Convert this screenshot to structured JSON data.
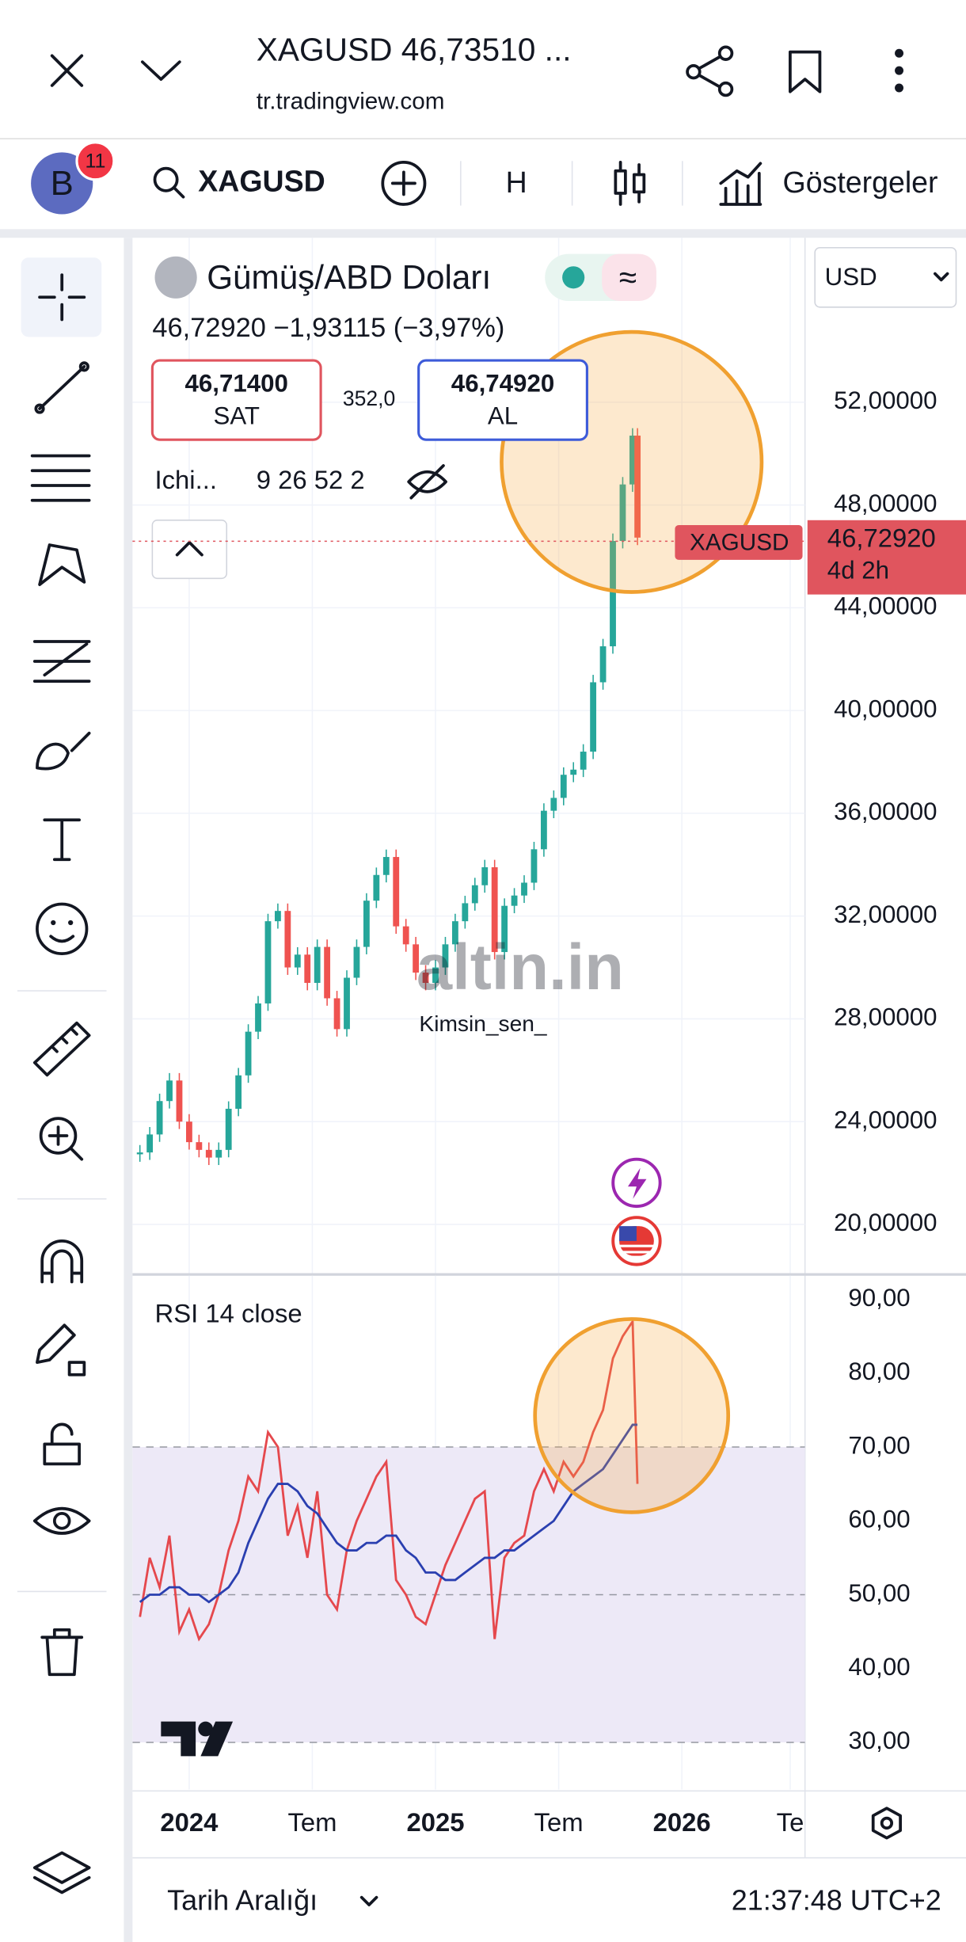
{
  "header": {
    "title": "XAGUSD 46,73510 ...",
    "url": "tr.tradingview.com"
  },
  "toolbar": {
    "avatar": "B",
    "badge": "11",
    "symbol": "XAGUSD",
    "interval": "H",
    "indicators": "Göstergeler"
  },
  "legend": {
    "name": "Gümüş/ABD Doları",
    "change": "46,72920  −1,93115 (−3,97%)",
    "sell_price": "46,71400",
    "sell": "SAT",
    "spread": "352,0",
    "buy_price": "46,74920",
    "buy": "AL",
    "indicator": "Ichi...",
    "indicator_params": "9 26 52 2"
  },
  "currency": "USD",
  "last_price": {
    "symbol": "XAGUSD",
    "value": "46,72920",
    "countdown": "4d 2h"
  },
  "watermark": {
    "brand": "altin.in",
    "user": "Kimsin_sen_"
  },
  "chart_data": [
    {
      "type": "candlestick",
      "up_color": "#26a69a",
      "down_color": "#ef5350",
      "x": [
        2023.8,
        2023.84,
        2023.88,
        2023.92,
        2023.96,
        2024.0,
        2024.04,
        2024.08,
        2024.12,
        2024.16,
        2024.2,
        2024.24,
        2024.28,
        2024.32,
        2024.36,
        2024.4,
        2024.44,
        2024.48,
        2024.52,
        2024.56,
        2024.6,
        2024.64,
        2024.68,
        2024.72,
        2024.76,
        2024.8,
        2024.84,
        2024.88,
        2024.92,
        2024.96,
        2025.0,
        2025.04,
        2025.08,
        2025.12,
        2025.16,
        2025.2,
        2025.24,
        2025.28,
        2025.32,
        2025.36,
        2025.4,
        2025.44,
        2025.48,
        2025.52,
        2025.56,
        2025.6,
        2025.64,
        2025.68,
        2025.72,
        2025.76,
        2025.8,
        2025.82
      ],
      "values": [
        22.8,
        23.5,
        24.8,
        25.6,
        24.0,
        23.2,
        22.9,
        22.6,
        22.9,
        24.5,
        25.8,
        27.5,
        28.6,
        31.8,
        32.2,
        30.0,
        30.5,
        29.4,
        30.8,
        28.8,
        27.6,
        29.6,
        30.8,
        32.6,
        33.6,
        34.3,
        31.6,
        30.9,
        29.8,
        29.4,
        30.0,
        30.9,
        31.8,
        32.5,
        33.2,
        33.9,
        30.6,
        32.4,
        32.8,
        33.3,
        34.6,
        36.1,
        36.6,
        37.5,
        37.7,
        38.4,
        41.1,
        42.5,
        46.6,
        48.8,
        50.7,
        46.73
      ],
      "xlim": [
        2023.77,
        2026.5
      ],
      "xticks": [
        {
          "value": 2024,
          "label": "2024"
        },
        {
          "value": 2024.5,
          "label": "Tem"
        },
        {
          "value": 2025,
          "label": "2025"
        },
        {
          "value": 2025.5,
          "label": "Tem"
        },
        {
          "value": 2026,
          "label": "2026"
        },
        {
          "value": 2026.44,
          "label": "Te"
        }
      ],
      "ylim": [
        18.1,
        58.4
      ],
      "yticks": [
        {
          "value": 20,
          "label": "20,00000"
        },
        {
          "value": 24,
          "label": "24,00000"
        },
        {
          "value": 28,
          "label": "28,00000"
        },
        {
          "value": 32,
          "label": "32,00000"
        },
        {
          "value": 36,
          "label": "36,00000"
        },
        {
          "value": 40,
          "label": "40,00000"
        },
        {
          "value": 44,
          "label": "44,00000"
        },
        {
          "value": 48,
          "label": "48,00000"
        },
        {
          "value": 52,
          "label": "52,00000"
        }
      ],
      "grid": true
    },
    {
      "type": "line",
      "title": "RSI 14 close",
      "x": [
        2023.8,
        2023.84,
        2023.88,
        2023.92,
        2023.96,
        2024.0,
        2024.04,
        2024.08,
        2024.12,
        2024.16,
        2024.2,
        2024.24,
        2024.28,
        2024.32,
        2024.36,
        2024.4,
        2024.44,
        2024.48,
        2024.52,
        2024.56,
        2024.6,
        2024.64,
        2024.68,
        2024.72,
        2024.76,
        2024.8,
        2024.84,
        2024.88,
        2024.92,
        2024.96,
        2025.0,
        2025.04,
        2025.08,
        2025.12,
        2025.16,
        2025.2,
        2025.24,
        2025.28,
        2025.32,
        2025.36,
        2025.4,
        2025.44,
        2025.48,
        2025.52,
        2025.56,
        2025.6,
        2025.64,
        2025.68,
        2025.72,
        2025.76,
        2025.8,
        2025.82
      ],
      "series": [
        {
          "color": "#e5484d",
          "values": [
            47,
            55,
            51,
            58,
            45,
            48,
            44,
            46,
            50,
            56,
            60,
            66,
            64,
            72,
            70,
            58,
            62,
            55,
            64,
            50,
            48,
            56,
            60,
            63,
            66,
            68,
            52,
            50,
            47,
            46,
            50,
            54,
            57,
            60,
            63,
            64,
            44,
            55,
            57,
            58,
            64,
            67,
            64,
            68,
            66,
            68,
            72,
            75,
            82,
            85,
            87,
            65
          ]
        },
        {
          "color": "#2a3fb0",
          "values": [
            49,
            50,
            50,
            51,
            51,
            50,
            50,
            49,
            50,
            51,
            53,
            57,
            60,
            63,
            65,
            65,
            64,
            62,
            61,
            59,
            57,
            56,
            56,
            57,
            57,
            58,
            58,
            56,
            55,
            53,
            53,
            52,
            52,
            53,
            54,
            55,
            55,
            56,
            56,
            57,
            58,
            59,
            60,
            62,
            64,
            65,
            66,
            67,
            69,
            71,
            73,
            73
          ]
        }
      ],
      "xlim": [
        2023.77,
        2026.5
      ],
      "ylim": [
        23.6,
        93.2
      ],
      "yticks": [
        {
          "value": 30,
          "label": "30,00"
        },
        {
          "value": 40,
          "label": "40,00"
        },
        {
          "value": 50,
          "label": "50,00"
        },
        {
          "value": 60,
          "label": "60,00"
        },
        {
          "value": 70,
          "label": "70,00"
        },
        {
          "value": 80,
          "label": "80,00"
        },
        {
          "value": 90,
          "label": "90,00"
        }
      ],
      "band": [
        30,
        70
      ],
      "dashed_levels": [
        30,
        50,
        70
      ]
    }
  ],
  "footer": {
    "range": "Tarih Aralığı",
    "time": "21:37:48 UTC+2"
  }
}
